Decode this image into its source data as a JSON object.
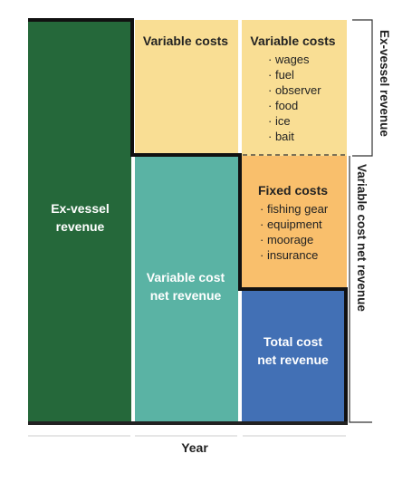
{
  "column1": {
    "label_line1": "Ex-vessel",
    "label_line2": "revenue"
  },
  "column2": {
    "top_title": "Variable costs",
    "bottom_label_line1": "Variable cost",
    "bottom_label_line2": "net revenue"
  },
  "column3": {
    "top_title": "Variable costs",
    "variable_cost_items": [
      "wages",
      "fuel",
      "observer",
      "food",
      "ice",
      "bait"
    ],
    "fixed_title": "Fixed costs",
    "fixed_cost_items": [
      "fishing gear",
      "equipment",
      "moorage",
      "insurance"
    ],
    "bottom_label_line1": "Total cost",
    "bottom_label_line2": "net revenue"
  },
  "brackets": {
    "outer": "Ex-vessel revenue",
    "inner": "Variable cost net revenue"
  },
  "x_axis_label": "Year",
  "colors": {
    "ex_vessel_revenue": "#25683a",
    "variable_costs": "#f9de94",
    "variable_cost_net_revenue": "#5ab3a4",
    "fixed_costs": "#f9bf6c",
    "total_cost_net_revenue": "#4270b5"
  }
}
